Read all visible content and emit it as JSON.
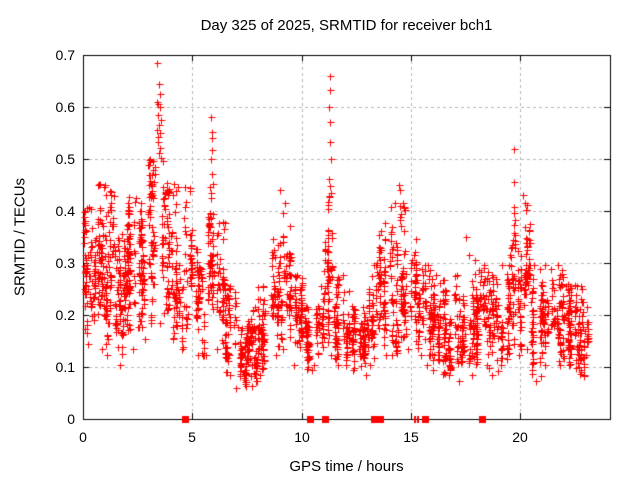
{
  "colors": {
    "marker": "#ff0000",
    "grid": "#b8b8b8",
    "border": "#000000",
    "background": "#ffffff",
    "text": "#000000"
  },
  "chart_data": {
    "type": "scatter",
    "title": "Day 325 of 2025, SRMTID for receiver bch1",
    "xlabel": "GPS time / hours",
    "ylabel": "SRMTID / TECUs",
    "xlim": [
      0,
      24.1
    ],
    "ylim": [
      0,
      0.7
    ],
    "x_ticks": [
      0,
      5,
      10,
      15,
      20
    ],
    "x_tick_labels": [
      "0",
      "5",
      "10",
      "15",
      "20"
    ],
    "y_ticks": [
      0,
      0.1,
      0.2,
      0.3,
      0.4,
      0.5,
      0.6,
      0.7
    ],
    "y_tick_labels": [
      "0",
      "0.1",
      "0.2",
      "0.3",
      "0.4",
      "0.5",
      "0.6",
      "0.7"
    ],
    "grid": true,
    "legend": "none",
    "marker": "plus",
    "series_name": "SRMTID",
    "seed": 1325,
    "cluster_bins_comment": "each bin: [x_start_hr, x_end_hr, y_min_TECU, y_max_TECU, approx_point_count]",
    "cluster_bins": [
      [
        0.0,
        0.5,
        0.14,
        0.41,
        55
      ],
      [
        0.5,
        1.0,
        0.13,
        0.455,
        75
      ],
      [
        1.0,
        1.5,
        0.12,
        0.44,
        70
      ],
      [
        1.5,
        2.0,
        0.1,
        0.36,
        70
      ],
      [
        2.0,
        2.5,
        0.13,
        0.43,
        65
      ],
      [
        2.5,
        3.0,
        0.15,
        0.42,
        60
      ],
      [
        3.0,
        3.5,
        0.18,
        0.5,
        55
      ],
      [
        3.5,
        4.0,
        0.2,
        0.5,
        60
      ],
      [
        4.0,
        4.5,
        0.15,
        0.45,
        55
      ],
      [
        4.5,
        5.0,
        0.13,
        0.45,
        50
      ],
      [
        5.0,
        5.5,
        0.12,
        0.33,
        50
      ],
      [
        5.5,
        6.0,
        0.12,
        0.45,
        50
      ],
      [
        6.0,
        6.5,
        0.13,
        0.38,
        45
      ],
      [
        6.5,
        7.0,
        0.08,
        0.26,
        50
      ],
      [
        7.0,
        7.5,
        0.055,
        0.18,
        60
      ],
      [
        7.5,
        8.0,
        0.06,
        0.22,
        55
      ],
      [
        8.0,
        8.5,
        0.08,
        0.26,
        55
      ],
      [
        8.5,
        9.0,
        0.12,
        0.35,
        55
      ],
      [
        9.0,
        9.5,
        0.13,
        0.42,
        55
      ],
      [
        9.5,
        10.0,
        0.1,
        0.28,
        50
      ],
      [
        10.0,
        10.5,
        0.09,
        0.22,
        50
      ],
      [
        10.5,
        11.0,
        0.1,
        0.26,
        40
      ],
      [
        11.0,
        11.5,
        0.12,
        0.43,
        50
      ],
      [
        11.5,
        12.0,
        0.1,
        0.28,
        50
      ],
      [
        12.0,
        12.5,
        0.09,
        0.25,
        55
      ],
      [
        12.5,
        13.0,
        0.08,
        0.22,
        50
      ],
      [
        13.0,
        13.5,
        0.1,
        0.3,
        50
      ],
      [
        13.5,
        14.0,
        0.12,
        0.38,
        55
      ],
      [
        14.0,
        14.5,
        0.12,
        0.42,
        50
      ],
      [
        14.5,
        15.0,
        0.13,
        0.42,
        50
      ],
      [
        15.0,
        15.5,
        0.12,
        0.35,
        55
      ],
      [
        15.5,
        16.0,
        0.1,
        0.3,
        55
      ],
      [
        16.0,
        16.5,
        0.09,
        0.28,
        50
      ],
      [
        16.5,
        17.0,
        0.08,
        0.25,
        50
      ],
      [
        17.0,
        17.5,
        0.07,
        0.28,
        55
      ],
      [
        17.5,
        18.0,
        0.08,
        0.32,
        55
      ],
      [
        18.0,
        18.5,
        0.1,
        0.3,
        50
      ],
      [
        18.5,
        19.0,
        0.08,
        0.28,
        50
      ],
      [
        19.0,
        19.5,
        0.1,
        0.3,
        45
      ],
      [
        19.5,
        20.0,
        0.12,
        0.4,
        55
      ],
      [
        20.0,
        20.5,
        0.13,
        0.42,
        55
      ],
      [
        20.5,
        21.0,
        0.07,
        0.3,
        50
      ],
      [
        21.0,
        21.5,
        0.1,
        0.3,
        50
      ],
      [
        21.5,
        22.0,
        0.1,
        0.3,
        55
      ],
      [
        22.0,
        22.5,
        0.1,
        0.26,
        55
      ],
      [
        22.5,
        23.0,
        0.08,
        0.26,
        60
      ],
      [
        23.0,
        23.1,
        0.12,
        0.22,
        10
      ]
    ],
    "outlier_points": [
      [
        3.4,
        0.685
      ],
      [
        3.47,
        0.645
      ],
      [
        3.5,
        0.625
      ],
      [
        3.39,
        0.61
      ],
      [
        3.45,
        0.605
      ],
      [
        3.52,
        0.6
      ],
      [
        3.42,
        0.585
      ],
      [
        3.55,
        0.575
      ],
      [
        3.47,
        0.565
      ],
      [
        3.37,
        0.555
      ],
      [
        3.5,
        0.55
      ],
      [
        3.44,
        0.542
      ],
      [
        3.41,
        0.532
      ],
      [
        3.53,
        0.522
      ],
      [
        3.48,
        0.512
      ],
      [
        3.58,
        0.502
      ],
      [
        3.08,
        0.5
      ],
      [
        3.05,
        0.47
      ],
      [
        3.12,
        0.452
      ],
      [
        3.1,
        0.435
      ],
      [
        4.15,
        0.452
      ],
      [
        4.1,
        0.43
      ],
      [
        5.86,
        0.58
      ],
      [
        5.9,
        0.552
      ],
      [
        5.88,
        0.54
      ],
      [
        5.92,
        0.518
      ],
      [
        5.85,
        0.5
      ],
      [
        5.9,
        0.472
      ],
      [
        5.94,
        0.452
      ],
      [
        5.87,
        0.435
      ],
      [
        9.02,
        0.44
      ],
      [
        0.72,
        0.452
      ],
      [
        11.28,
        0.66
      ],
      [
        11.31,
        0.632
      ],
      [
        11.27,
        0.6
      ],
      [
        11.3,
        0.572
      ],
      [
        11.29,
        0.532
      ],
      [
        11.32,
        0.5
      ],
      [
        11.26,
        0.462
      ],
      [
        11.3,
        0.448
      ],
      [
        11.33,
        0.435
      ],
      [
        11.27,
        0.428
      ],
      [
        14.45,
        0.45
      ],
      [
        14.5,
        0.44
      ],
      [
        17.5,
        0.35
      ],
      [
        19.7,
        0.52
      ],
      [
        19.72,
        0.455
      ],
      [
        19.69,
        0.407
      ],
      [
        20.1,
        0.43
      ]
    ],
    "axis_markers": {
      "comment": "red filled squares sitting on the x-axis (y=0)",
      "squares_x_hours": [
        4.65,
        10.4,
        11.06,
        13.32,
        13.6,
        15.65,
        18.24
      ],
      "thin_marks_x_hours": [
        15.18,
        15.32
      ]
    }
  }
}
